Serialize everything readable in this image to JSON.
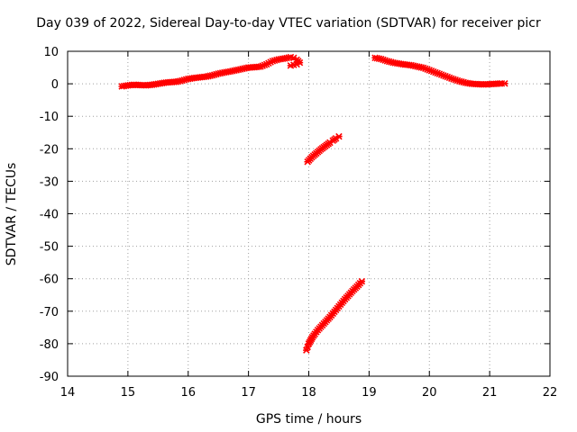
{
  "chart_data": {
    "type": "scatter",
    "title": "Day 039 of 2022, Sidereal Day-to-day VTEC variation (SDTVAR) for receiver picr",
    "xlabel": "GPS time / hours",
    "ylabel": "SDTVAR / TECUs",
    "xlim": [
      14,
      22
    ],
    "ylim": [
      -90,
      10
    ],
    "x_ticks": [
      14,
      15,
      16,
      17,
      18,
      19,
      20,
      21,
      22
    ],
    "y_ticks": [
      10,
      0,
      -10,
      -20,
      -30,
      -40,
      -50,
      -60,
      -70,
      -80,
      -90
    ],
    "grid": true,
    "marker": "cross",
    "color": "#ff0000",
    "series": [
      {
        "points": [
          [
            14.9,
            -0.8
          ],
          [
            15.0,
            -0.5
          ],
          [
            15.1,
            -0.3
          ],
          [
            15.2,
            -0.4
          ],
          [
            15.3,
            -0.5
          ],
          [
            15.4,
            -0.3
          ],
          [
            15.5,
            0.0
          ],
          [
            15.6,
            0.3
          ],
          [
            15.7,
            0.5
          ],
          [
            15.8,
            0.6
          ],
          [
            15.9,
            1.0
          ],
          [
            16.0,
            1.5
          ],
          [
            16.1,
            1.8
          ],
          [
            16.2,
            2.0
          ],
          [
            16.3,
            2.2
          ],
          [
            16.4,
            2.6
          ],
          [
            16.5,
            3.1
          ],
          [
            16.6,
            3.5
          ],
          [
            16.7,
            3.8
          ],
          [
            16.8,
            4.2
          ],
          [
            16.9,
            4.6
          ],
          [
            17.0,
            5.0
          ],
          [
            17.1,
            5.1
          ],
          [
            17.2,
            5.3
          ],
          [
            17.3,
            6.0
          ],
          [
            17.4,
            7.0
          ],
          [
            17.5,
            7.5
          ],
          [
            17.6,
            7.8
          ],
          [
            17.7,
            8.2
          ],
          [
            17.75,
            8.0
          ],
          [
            17.8,
            7.4
          ],
          [
            17.85,
            6.5
          ],
          [
            17.8,
            6.0
          ],
          [
            17.75,
            5.8
          ],
          [
            17.7,
            5.6
          ]
        ]
      },
      {
        "points": [
          [
            17.98,
            -24
          ],
          [
            18.05,
            -22.6
          ],
          [
            18.1,
            -21.8
          ],
          [
            18.15,
            -21.0
          ],
          [
            18.2,
            -20.2
          ],
          [
            18.25,
            -19.5
          ],
          [
            18.3,
            -18.8
          ],
          [
            18.35,
            -18.1
          ],
          [
            18.4,
            -17.5
          ],
          [
            18.45,
            -16.8
          ],
          [
            18.5,
            -16.2
          ]
        ]
      },
      {
        "points": [
          [
            17.96,
            -82
          ],
          [
            17.98,
            -81
          ],
          [
            18.0,
            -80
          ],
          [
            18.03,
            -79
          ],
          [
            18.06,
            -78
          ],
          [
            18.1,
            -77
          ],
          [
            18.15,
            -75.8
          ],
          [
            18.2,
            -74.8
          ],
          [
            18.25,
            -73.8
          ],
          [
            18.3,
            -72.8
          ],
          [
            18.35,
            -71.8
          ],
          [
            18.4,
            -70.7
          ],
          [
            18.45,
            -69.6
          ],
          [
            18.5,
            -68.5
          ],
          [
            18.55,
            -67.4
          ],
          [
            18.6,
            -66.3
          ],
          [
            18.65,
            -65.3
          ],
          [
            18.7,
            -64.3
          ],
          [
            18.75,
            -63.3
          ],
          [
            18.8,
            -62.4
          ],
          [
            18.85,
            -61.4
          ],
          [
            18.88,
            -60.8
          ]
        ]
      },
      {
        "points": [
          [
            19.1,
            8.0
          ],
          [
            19.2,
            7.6
          ],
          [
            19.3,
            7.0
          ],
          [
            19.4,
            6.5
          ],
          [
            19.5,
            6.2
          ],
          [
            19.6,
            5.9
          ],
          [
            19.7,
            5.7
          ],
          [
            19.8,
            5.3
          ],
          [
            19.9,
            4.9
          ],
          [
            20.0,
            4.2
          ],
          [
            20.1,
            3.5
          ],
          [
            20.2,
            2.8
          ],
          [
            20.3,
            2.1
          ],
          [
            20.4,
            1.4
          ],
          [
            20.5,
            0.8
          ],
          [
            20.6,
            0.3
          ],
          [
            20.7,
            0.0
          ],
          [
            20.8,
            -0.1
          ],
          [
            20.9,
            -0.2
          ],
          [
            21.0,
            -0.1
          ],
          [
            21.1,
            0.0
          ],
          [
            21.2,
            0.1
          ],
          [
            21.25,
            0.1
          ]
        ]
      }
    ]
  }
}
